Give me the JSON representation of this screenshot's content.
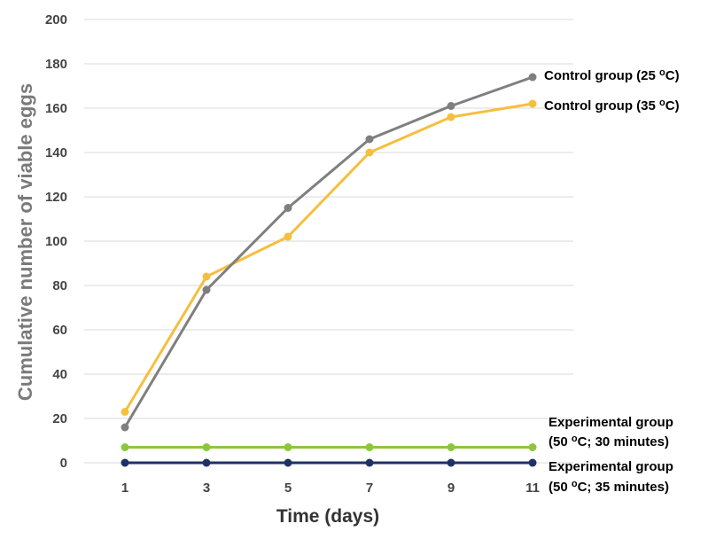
{
  "chart_data": {
    "type": "line",
    "xlabel": "Time (days)",
    "ylabel": "Cumulative number of viable eggs",
    "x": [
      1,
      3,
      5,
      7,
      9,
      11
    ],
    "xticks": [
      "1",
      "3",
      "5",
      "7",
      "9",
      "11"
    ],
    "ylim": [
      0,
      200
    ],
    "yticks": [
      "0",
      "20",
      "40",
      "60",
      "80",
      "100",
      "120",
      "140",
      "160",
      "180",
      "200"
    ],
    "grid": true,
    "legend": "end-of-line labels",
    "series": [
      {
        "name": "Control group (25 oC)",
        "label_lines": [
          {
            "text": "Control group (25 ",
            "sup": "o",
            "after": "C)"
          }
        ],
        "color": "#7f7f7f",
        "values": [
          16,
          78,
          115,
          146,
          161,
          174
        ]
      },
      {
        "name": "Control group (35 oC)",
        "label_lines": [
          {
            "text": "Control group (35 ",
            "sup": "o",
            "after": "C)"
          }
        ],
        "color": "#f5bf3e",
        "values": [
          23,
          84,
          102,
          140,
          156,
          162
        ]
      },
      {
        "name": "Experimental group (50 oC; 30 minutes)",
        "label_lines": [
          {
            "text": "Experimental group",
            "sup": "",
            "after": ""
          },
          {
            "text": "(50 ",
            "sup": "o",
            "after": "C; 30 minutes)"
          }
        ],
        "color": "#8cc641",
        "values": [
          7,
          7,
          7,
          7,
          7,
          7
        ]
      },
      {
        "name": "Experimental group (50 oC; 35 minutes)",
        "label_lines": [
          {
            "text": "Experimental group",
            "sup": "",
            "after": ""
          },
          {
            "text": "(50 ",
            "sup": "o",
            "after": "C; 35 minutes)"
          }
        ],
        "color": "#1f3266",
        "values": [
          0,
          0,
          0,
          0,
          0,
          0
        ]
      }
    ]
  }
}
